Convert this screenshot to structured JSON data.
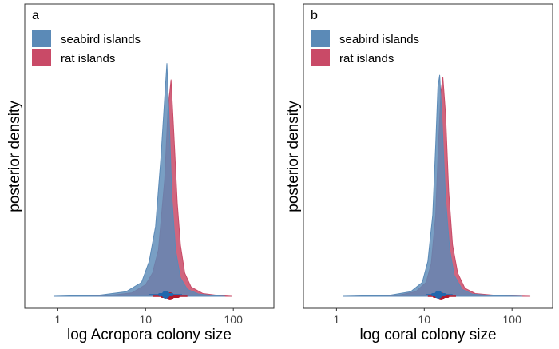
{
  "colors": {
    "seabird": "#5b8ab7",
    "rat": "#c94a67",
    "overlap": "#5a5080",
    "seabird_point": "#2166ac",
    "rat_point": "#b2182b",
    "axis": "#333333",
    "text": "#000000"
  },
  "chart_data": [
    {
      "type": "area",
      "panel_label": "a",
      "title": "",
      "xlabel": "log Acropora colony size",
      "ylabel": "posterior density",
      "x_scale": "log10",
      "xlim": [
        0.42,
        290
      ],
      "ylim": [
        0,
        1.05
      ],
      "x_ticks": [
        1,
        10,
        100
      ],
      "x_tick_labels": [
        "1",
        "10",
        "100"
      ],
      "grid": false,
      "legend_position": "top-left",
      "series": [
        {
          "name": "seabird islands",
          "color_key": "seabird",
          "x": [
            0.9,
            3,
            6,
            9,
            11,
            13,
            15,
            16.5,
            17.5,
            18.5,
            20,
            22,
            25,
            30,
            40,
            60,
            80
          ],
          "y": [
            0.0,
            0.005,
            0.02,
            0.06,
            0.15,
            0.3,
            0.6,
            0.85,
            1.0,
            0.78,
            0.42,
            0.2,
            0.08,
            0.03,
            0.01,
            0.003,
            0.0
          ]
        },
        {
          "name": "rat islands",
          "color_key": "rat",
          "x": [
            1.5,
            4,
            7,
            10,
            12,
            14,
            16.5,
            18,
            19.5,
            21,
            23,
            25,
            28,
            33,
            45,
            70,
            95
          ],
          "y": [
            0.0,
            0.004,
            0.015,
            0.05,
            0.1,
            0.2,
            0.5,
            0.8,
            0.93,
            0.7,
            0.4,
            0.22,
            0.1,
            0.04,
            0.012,
            0.003,
            0.0
          ]
        }
      ],
      "point_intervals": [
        {
          "series": "rat islands",
          "point": 19.0,
          "inner": [
            15.5,
            23.5
          ],
          "outer": [
            12,
            30
          ],
          "color_key": "rat_point"
        },
        {
          "series": "seabird islands",
          "point": 17.0,
          "inner": [
            14.5,
            20.0
          ],
          "outer": [
            11,
            26
          ],
          "color_key": "seabird_point"
        }
      ]
    },
    {
      "type": "area",
      "panel_label": "b",
      "title": "",
      "xlabel": "log coral colony size",
      "ylabel": "posterior density",
      "x_scale": "log10",
      "xlim": [
        0.42,
        290
      ],
      "ylim": [
        0,
        1.05
      ],
      "x_ticks": [
        1,
        10,
        100
      ],
      "x_tick_labels": [
        "1",
        "10",
        "100"
      ],
      "grid": false,
      "legend_position": "top-left",
      "series": [
        {
          "name": "seabird islands",
          "color_key": "seabird",
          "x": [
            1.2,
            4,
            7,
            9.5,
            11,
            12.5,
            13.5,
            14.3,
            15,
            16,
            17.5,
            19.5,
            22,
            27,
            35,
            60,
            130
          ],
          "y": [
            0.0,
            0.004,
            0.02,
            0.06,
            0.15,
            0.35,
            0.65,
            0.9,
            0.95,
            0.75,
            0.42,
            0.2,
            0.09,
            0.03,
            0.01,
            0.003,
            0.0
          ]
        },
        {
          "name": "rat islands",
          "color_key": "rat",
          "x": [
            1.6,
            5,
            8,
            10.5,
            12,
            13.5,
            14.5,
            15.5,
            16.3,
            17.5,
            19,
            21,
            24,
            29,
            38,
            70,
            160
          ],
          "y": [
            0.0,
            0.004,
            0.02,
            0.06,
            0.14,
            0.35,
            0.65,
            0.88,
            0.94,
            0.78,
            0.45,
            0.22,
            0.1,
            0.035,
            0.012,
            0.003,
            0.0
          ]
        }
      ],
      "point_intervals": [
        {
          "series": "rat islands",
          "point": 15.5,
          "inner": [
            13,
            18.5
          ],
          "outer": [
            11,
            23
          ],
          "color_key": "rat_point"
        },
        {
          "series": "seabird islands",
          "point": 14.5,
          "inner": [
            12.5,
            17
          ],
          "outer": [
            10.5,
            21
          ],
          "color_key": "seabird_point"
        }
      ]
    }
  ]
}
